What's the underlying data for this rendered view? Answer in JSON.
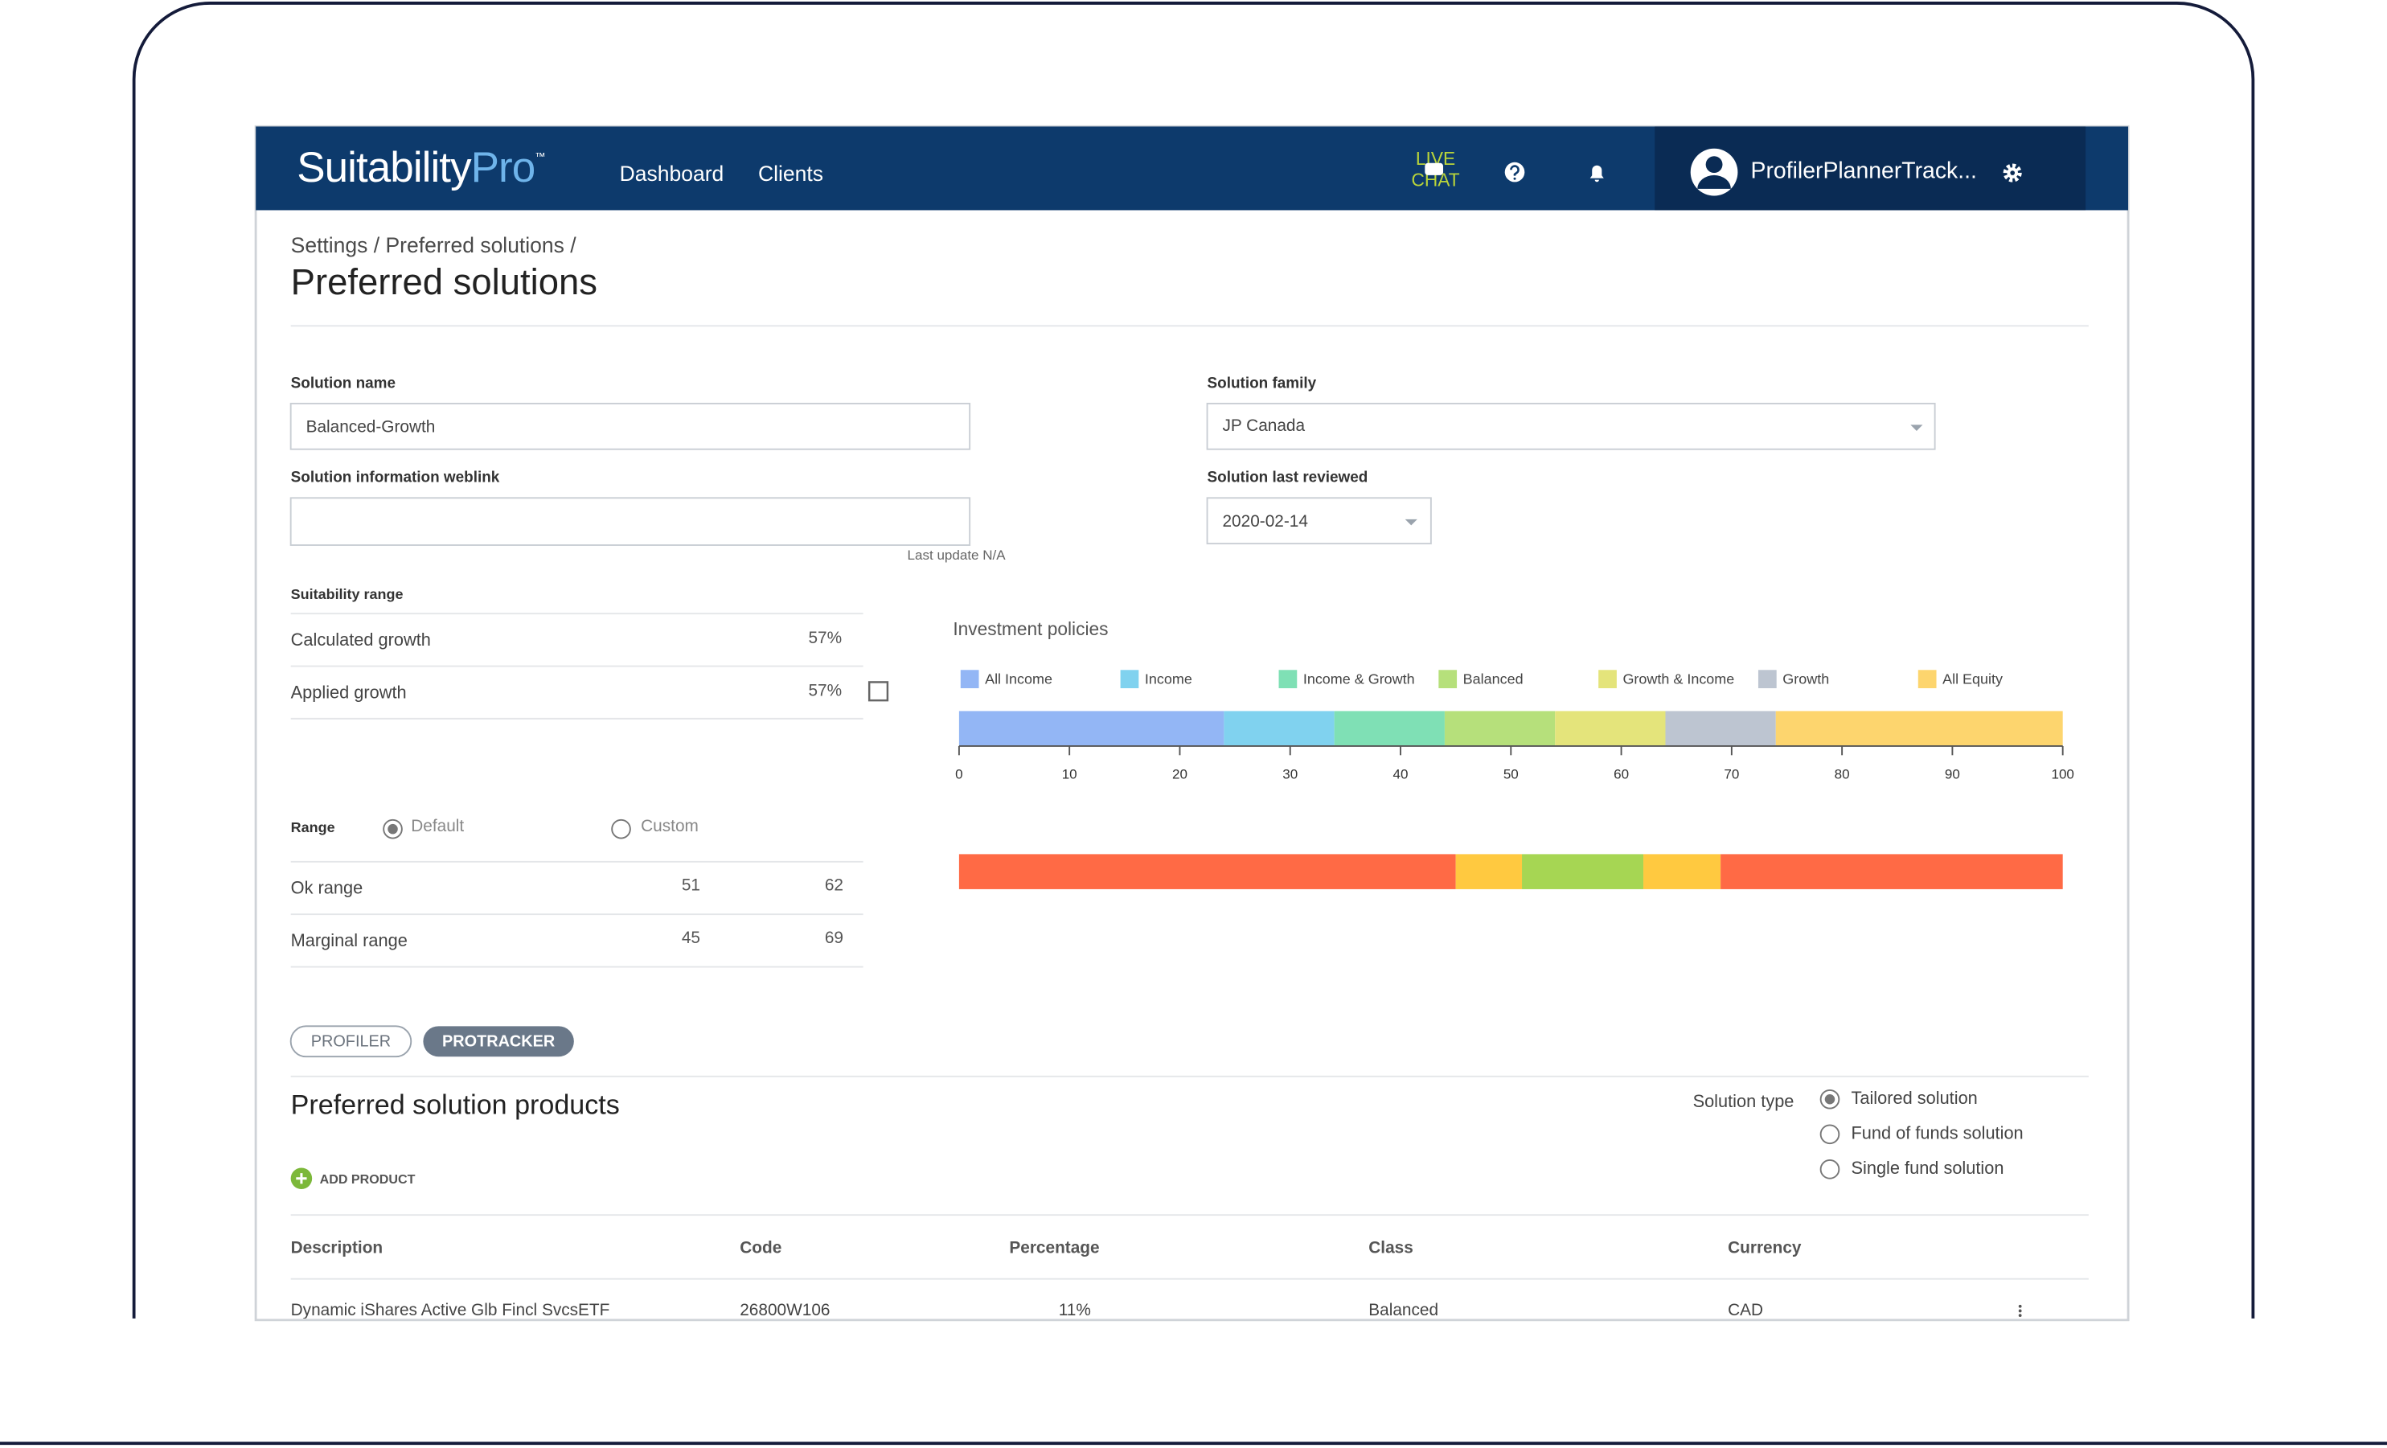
{
  "nav": {
    "logo": "Suitability",
    "logo_accent": "Pro",
    "logo_mark": "™",
    "links": [
      "Dashboard",
      "Clients"
    ],
    "live_chat": [
      "LIVE",
      "CHAT"
    ],
    "user": "ProfilerPlannerTrack..."
  },
  "breadcrumb": "Settings / Preferred solutions /",
  "title": "Preferred solutions",
  "form": {
    "solution_name": {
      "label": "Solution name",
      "value": "Balanced-Growth"
    },
    "solution_family": {
      "label": "Solution family",
      "value": "JP Canada"
    },
    "weblink": {
      "label": "Solution information weblink",
      "note": "Last update N/A"
    },
    "last_reviewed": {
      "label": "Solution last reviewed",
      "value": "2020-02-14"
    }
  },
  "suitability": {
    "label": "Suitability range",
    "rows": [
      {
        "label": "Calculated growth",
        "value": "57%"
      },
      {
        "label": "Applied growth",
        "value": "57%"
      }
    ]
  },
  "range_options": {
    "label": "Range",
    "options": [
      "Default",
      "Custom"
    ]
  },
  "ranges": [
    {
      "label": "Ok range",
      "values": [
        51,
        62
      ]
    },
    {
      "label": "Marginal range",
      "values": [
        45,
        69
      ]
    }
  ],
  "range_colors": {
    "outside": "#ff6a45",
    "marginal": "#ffc940",
    "ok": "#a6d653"
  },
  "chart_data": {
    "type": "stacked-bar",
    "title": "Investment policies",
    "series": [
      {
        "name": "All Income",
        "color": "#93b6f5",
        "values": [
          24
        ]
      },
      {
        "name": "Income",
        "color": "#80d2ef",
        "values": [
          10
        ]
      },
      {
        "name": "Income & Growth",
        "color": "#7fe0b5",
        "values": [
          10
        ]
      },
      {
        "name": "Balanced",
        "color": "#b6e07b",
        "values": [
          10
        ]
      },
      {
        "name": "Growth & Income",
        "color": "#e4e47b",
        "values": [
          10
        ]
      },
      {
        "name": "Growth",
        "color": "#bdc5d1",
        "values": [
          10
        ]
      },
      {
        "name": "All Equity",
        "color": "#fdd56e",
        "values": [
          26
        ]
      }
    ],
    "xlim": [
      0,
      100
    ],
    "xticks": [
      0,
      10,
      20,
      30,
      40,
      50,
      60,
      70,
      80,
      90,
      100
    ]
  },
  "tabs": [
    "PROFILER",
    "PROTRACKER"
  ],
  "products": {
    "title": "Preferred solution products",
    "add": "ADD PRODUCT",
    "solution_type": {
      "label": "Solution type",
      "options": [
        "Tailored solution",
        "Fund of funds solution",
        "Single fund solution"
      ]
    }
  },
  "table": {
    "header": [
      "Description",
      "Code",
      "Percentage",
      "Class",
      "Currency"
    ],
    "rows": [
      [
        "Dynamic iShares Active Glb Fincl SvcsETF",
        "26800W106",
        "11%",
        "Balanced",
        "CAD"
      ]
    ]
  }
}
